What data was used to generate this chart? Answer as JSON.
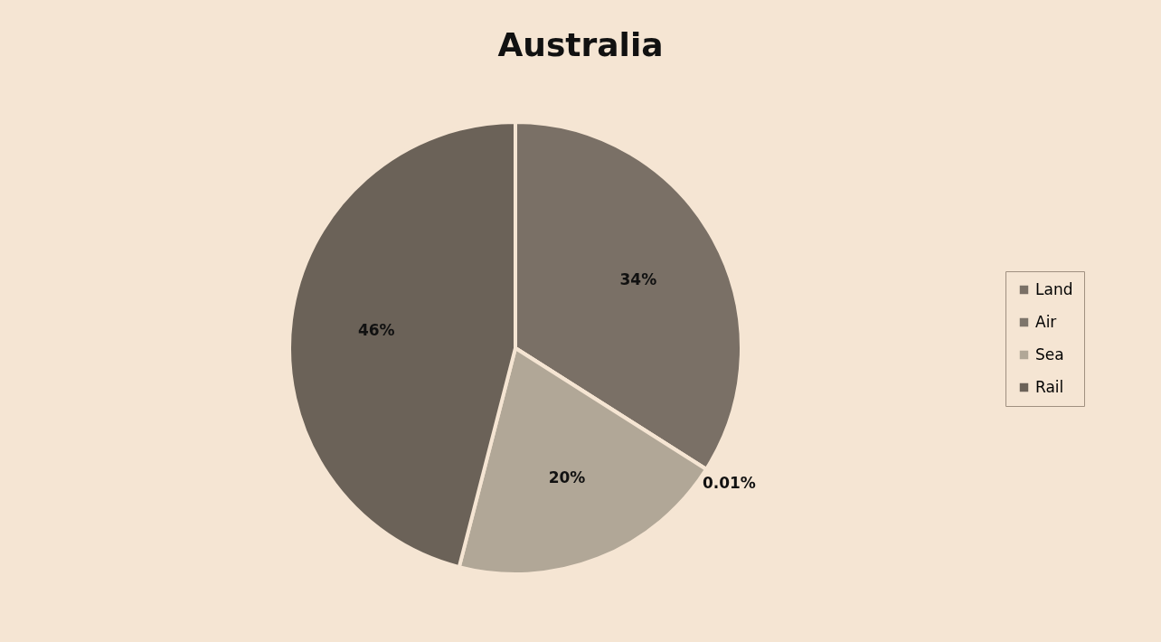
{
  "chart_data": {
    "type": "pie",
    "title": "Australia",
    "categories": [
      "Land",
      "Air",
      "Sea",
      "Rail"
    ],
    "values": [
      34,
      0.01,
      20,
      46
    ],
    "colors": [
      "#7a7066",
      "#7d756b",
      "#b1a797",
      "#6b6258"
    ],
    "value_labels": [
      "34%",
      "0.01%",
      "20%",
      "46%"
    ],
    "legend": "right"
  }
}
